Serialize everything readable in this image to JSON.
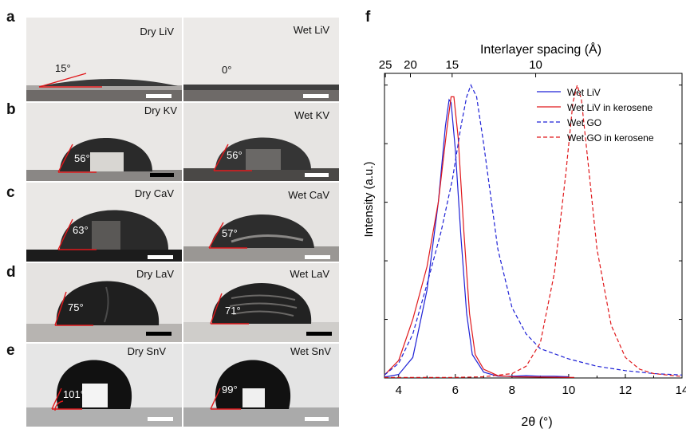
{
  "panels": {
    "a": {
      "letter": "a",
      "left_label": "Dry LiV",
      "right_label": "Wet LiV",
      "left_angle": "15°",
      "right_angle": "0°"
    },
    "b": {
      "letter": "b",
      "left_label": "Dry KV",
      "right_label": "Wet KV",
      "left_angle": "56°",
      "right_angle": "56°"
    },
    "c": {
      "letter": "c",
      "left_label": "Dry CaV",
      "right_label": "Wet CaV",
      "left_angle": "63°",
      "right_angle": "57°"
    },
    "d": {
      "letter": "d",
      "left_label": "Dry LaV",
      "right_label": "Wet LaV",
      "left_angle": "75°",
      "right_angle": "71°"
    },
    "e": {
      "letter": "e",
      "left_label": "Dry SnV",
      "right_label": "Wet SnV",
      "left_angle": "101°",
      "right_angle": "99°"
    },
    "f": {
      "letter": "f"
    }
  },
  "chart_data": {
    "type": "line",
    "xlabel": "2θ (°)",
    "ylabel": "Intensity (a.u.)",
    "top_xlabel": "Interlayer spacing (Å)",
    "xlim": [
      3.5,
      14
    ],
    "ylim": [
      0,
      1.04
    ],
    "x_ticks": [
      "4",
      "6",
      "8",
      "10",
      "12",
      "14"
    ],
    "top_ticks": [
      "25",
      "20",
      "15",
      "10"
    ],
    "legend_position": "top-right",
    "series": [
      {
        "name": "Wet LiV",
        "color": "#1f22d6",
        "style": "solid",
        "points": [
          [
            3.5,
            0.003
          ],
          [
            4.0,
            0.012
          ],
          [
            4.5,
            0.07
          ],
          [
            5.0,
            0.3
          ],
          [
            5.4,
            0.6
          ],
          [
            5.65,
            0.86
          ],
          [
            5.78,
            0.95
          ],
          [
            5.85,
            0.94
          ],
          [
            6.0,
            0.78
          ],
          [
            6.2,
            0.48
          ],
          [
            6.4,
            0.22
          ],
          [
            6.6,
            0.08
          ],
          [
            7.0,
            0.02
          ],
          [
            7.5,
            0.006
          ],
          [
            8.0,
            0.006
          ],
          [
            8.5,
            0.008
          ],
          [
            9.0,
            0.006
          ],
          [
            9.5,
            0.006
          ],
          [
            10.0,
            0.004
          ]
        ]
      },
      {
        "name": "Wet LiV in kerosene",
        "color": "#e0181b",
        "style": "solid",
        "points": [
          [
            3.5,
            0.01
          ],
          [
            4.0,
            0.06
          ],
          [
            4.5,
            0.2
          ],
          [
            5.0,
            0.38
          ],
          [
            5.4,
            0.6
          ],
          [
            5.7,
            0.85
          ],
          [
            5.85,
            0.96
          ],
          [
            5.95,
            0.96
          ],
          [
            6.1,
            0.82
          ],
          [
            6.3,
            0.5
          ],
          [
            6.5,
            0.22
          ],
          [
            6.7,
            0.08
          ],
          [
            7.0,
            0.03
          ],
          [
            7.5,
            0.008
          ],
          [
            8.0,
            0.004
          ],
          [
            9.0,
            0.003
          ],
          [
            10.2,
            0.002
          ]
        ]
      },
      {
        "name": "Wet GO",
        "color": "#1f22d6",
        "style": "dashed",
        "points": [
          [
            3.5,
            0.01
          ],
          [
            4.0,
            0.05
          ],
          [
            4.5,
            0.15
          ],
          [
            5.0,
            0.32
          ],
          [
            5.5,
            0.5
          ],
          [
            5.9,
            0.68
          ],
          [
            6.2,
            0.86
          ],
          [
            6.4,
            0.96
          ],
          [
            6.55,
            1.0
          ],
          [
            6.75,
            0.96
          ],
          [
            7.0,
            0.8
          ],
          [
            7.5,
            0.44
          ],
          [
            8.0,
            0.24
          ],
          [
            8.5,
            0.15
          ],
          [
            9.0,
            0.1
          ],
          [
            10.0,
            0.065
          ],
          [
            11.0,
            0.04
          ],
          [
            12.0,
            0.025
          ],
          [
            13.0,
            0.015
          ],
          [
            14.0,
            0.01
          ]
        ]
      },
      {
        "name": "Wet GO in kerosene",
        "color": "#e0181b",
        "style": "dashed",
        "points": [
          [
            3.5,
            0.002
          ],
          [
            5.0,
            0.002
          ],
          [
            6.0,
            0.002
          ],
          [
            7.0,
            0.004
          ],
          [
            8.0,
            0.015
          ],
          [
            8.5,
            0.04
          ],
          [
            9.0,
            0.12
          ],
          [
            9.5,
            0.36
          ],
          [
            9.9,
            0.7
          ],
          [
            10.15,
            0.94
          ],
          [
            10.3,
            1.0
          ],
          [
            10.45,
            0.95
          ],
          [
            10.7,
            0.72
          ],
          [
            11.0,
            0.44
          ],
          [
            11.5,
            0.18
          ],
          [
            12.0,
            0.07
          ],
          [
            12.5,
            0.03
          ],
          [
            13.0,
            0.015
          ],
          [
            14.0,
            0.005
          ]
        ]
      }
    ]
  },
  "colors": {
    "red": "#e0181b",
    "blue": "#1f22d6"
  }
}
